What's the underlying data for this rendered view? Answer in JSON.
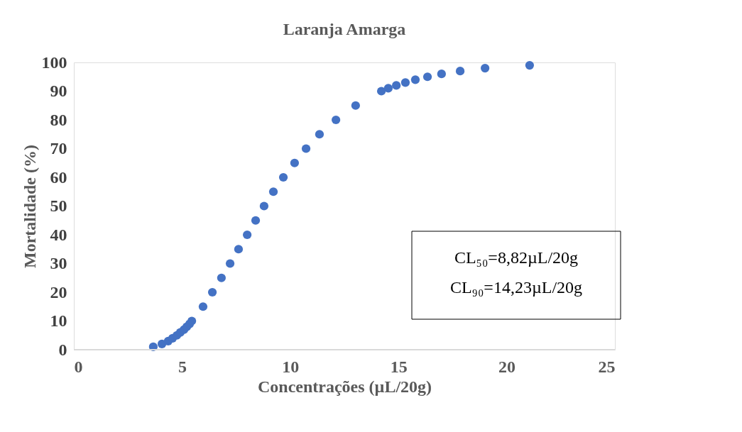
{
  "chart_data": {
    "type": "scatter",
    "title": "Laranja Amarga",
    "xlabel": "Concentrações (µL/20g)",
    "ylabel": "Mortalidade (%)",
    "x": [
      3.67,
      4.07,
      4.36,
      4.56,
      4.76,
      4.92,
      5.09,
      5.22,
      5.35,
      5.45,
      5.97,
      6.4,
      6.82,
      7.22,
      7.61,
      8.01,
      8.4,
      8.79,
      9.22,
      9.68,
      10.2,
      10.73,
      11.35,
      12.11,
      13.02,
      14.21,
      14.53,
      14.9,
      15.32,
      15.78,
      16.34,
      16.99,
      17.85,
      19.0,
      21.06
    ],
    "series": [
      {
        "color": "#4472c4",
        "values": [
          1,
          2,
          3,
          4,
          5,
          6,
          7,
          8,
          9,
          10,
          15,
          20,
          25,
          30,
          35,
          40,
          45,
          50,
          55,
          60,
          65,
          70,
          75,
          80,
          85,
          90,
          91,
          92,
          93,
          94,
          95,
          96,
          97,
          98,
          99
        ]
      }
    ],
    "xlim": [
      0,
      25
    ],
    "xticks": [
      0,
      5,
      10,
      15,
      20,
      25
    ],
    "ylim": [
      0,
      100
    ],
    "yticks": [
      0,
      10,
      20,
      30,
      40,
      50,
      60,
      70,
      80,
      90,
      100
    ],
    "grid": false,
    "legend": false,
    "marker": "circle",
    "annotations": [
      "CL₅₀=8,82µL/20g",
      "CL₉₀=14,23µL/20g"
    ]
  }
}
